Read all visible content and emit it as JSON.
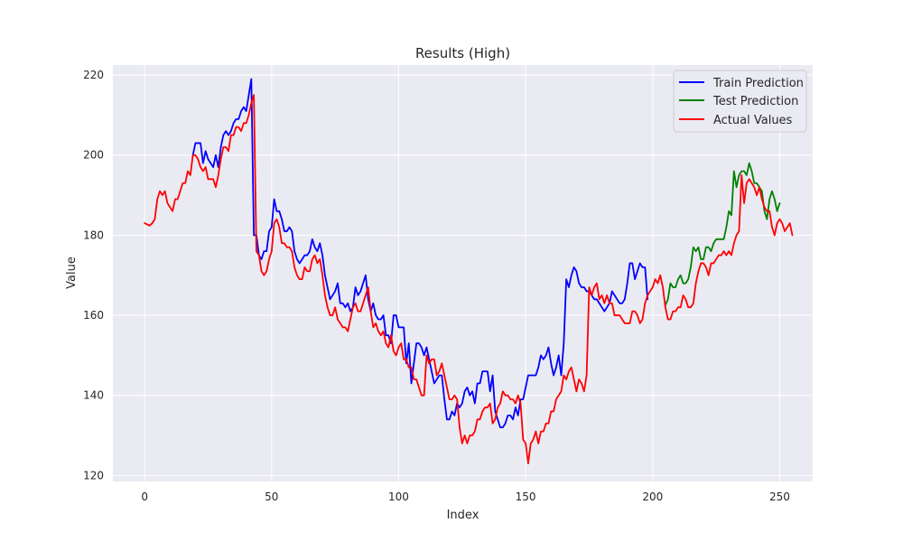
{
  "chart_data": {
    "type": "line",
    "title": "Results (High)",
    "xlabel": "Index",
    "ylabel": "Value",
    "xlim": [
      -12.5,
      263
    ],
    "ylim": [
      118.5,
      222.5
    ],
    "xticks": [
      0,
      50,
      100,
      150,
      200,
      250
    ],
    "yticks": [
      120,
      140,
      160,
      180,
      200,
      220
    ],
    "grid": true,
    "legend_position": "top-right",
    "colors": {
      "plot_background": "#eaeaf2",
      "grid": "#ffffff",
      "text": "#262626"
    },
    "series": [
      {
        "name": "Train Prediction",
        "color": "#0000ff",
        "x_start": 19,
        "values": [
          200,
          203,
          203,
          203,
          198,
          201,
          199,
          198,
          197,
          200,
          197,
          202,
          205,
          206,
          205,
          206,
          208,
          209,
          209,
          211,
          212,
          211,
          215,
          219,
          180,
          180,
          175,
          174,
          176,
          176,
          181,
          182,
          189,
          186,
          186,
          184,
          181,
          181,
          182,
          181,
          176,
          174,
          173,
          174,
          175,
          175,
          176,
          179,
          177,
          176,
          178,
          175,
          170,
          167,
          164,
          165,
          166,
          168,
          163,
          163,
          162,
          163,
          161,
          162,
          167,
          165,
          166,
          168,
          170,
          164,
          161,
          163,
          160,
          159,
          159,
          160,
          155,
          155,
          153,
          160,
          160,
          157,
          157,
          157,
          148,
          153,
          143,
          148,
          153,
          153,
          152,
          150,
          152,
          149,
          146,
          143,
          144,
          145,
          145,
          139,
          134,
          134,
          136,
          135,
          138,
          137,
          138,
          141,
          142,
          140,
          141,
          138,
          143,
          143,
          146,
          146,
          146,
          141,
          145,
          136,
          134,
          132,
          132,
          133,
          135,
          135,
          134,
          137,
          135,
          139,
          139,
          142,
          145,
          145,
          145,
          145,
          147,
          150,
          149,
          150,
          152,
          148,
          145,
          147,
          150,
          145,
          153,
          169,
          167,
          170,
          172,
          171,
          168,
          167,
          167,
          166,
          166,
          165,
          164,
          164,
          163,
          162,
          161,
          162,
          163,
          166,
          165,
          164,
          163,
          163,
          164,
          168,
          173,
          173,
          169,
          171,
          173,
          172,
          172,
          164
        ]
      },
      {
        "name": "Test Prediction",
        "color": "#008000",
        "x_start": 205,
        "values": [
          162.5,
          164,
          168,
          167,
          167,
          169,
          170,
          168,
          168,
          169,
          172,
          177,
          176,
          177,
          174,
          174,
          177,
          177,
          176,
          178,
          179,
          179,
          179,
          179,
          182,
          186,
          185,
          196,
          192,
          195,
          196,
          196,
          195,
          198,
          196,
          193,
          193,
          192,
          191,
          186,
          184,
          189,
          191,
          189,
          186,
          188
        ]
      },
      {
        "name": "Actual Values",
        "color": "#ff0000",
        "x_start": 0,
        "values": [
          183,
          182.7,
          182.4,
          183,
          184,
          189,
          191,
          190,
          191,
          188,
          187,
          186,
          189,
          189,
          191,
          193,
          193,
          196,
          195,
          200,
          200,
          199,
          197,
          196,
          197,
          194,
          194,
          194,
          192,
          195,
          199,
          202,
          202,
          201,
          205,
          205,
          207,
          207,
          206,
          208,
          208,
          210,
          213,
          215,
          176,
          175,
          171,
          170,
          171,
          174,
          176,
          183,
          184,
          182,
          178,
          178,
          177,
          177,
          176,
          172,
          170,
          169,
          169,
          172,
          171,
          171,
          174,
          175,
          173,
          174,
          170,
          165,
          162,
          160,
          160,
          162,
          159,
          158,
          157,
          157,
          156,
          159,
          162,
          163,
          161,
          161,
          163,
          165,
          167,
          161,
          157,
          158,
          156,
          155,
          156,
          153,
          152,
          155,
          151,
          150,
          152,
          153,
          149,
          149,
          147,
          147,
          144,
          144,
          142,
          140,
          140,
          150,
          148,
          149,
          149,
          145,
          146,
          148,
          145,
          142,
          139,
          139,
          140,
          139,
          132,
          128,
          130,
          128,
          130,
          130,
          131,
          134,
          134,
          136,
          137,
          137,
          138,
          133,
          134,
          137,
          138,
          141,
          140,
          140,
          139,
          139,
          138,
          140,
          138,
          129,
          128,
          123,
          128,
          129,
          131,
          128,
          131,
          131,
          133,
          133,
          136,
          136,
          139,
          140,
          141,
          145,
          144,
          146,
          147,
          144,
          141,
          144,
          143,
          141,
          145,
          167,
          165,
          167,
          168,
          164,
          165,
          163,
          165,
          163,
          163,
          160,
          160,
          160,
          159,
          158,
          158,
          158,
          161,
          161,
          160,
          158,
          159,
          163,
          165,
          166,
          167,
          169,
          168,
          170,
          167,
          162,
          159,
          159,
          161,
          161,
          162,
          162,
          165,
          164,
          162,
          162,
          163,
          168,
          171,
          173,
          173,
          172,
          170,
          173,
          173,
          174,
          175,
          175,
          176,
          175,
          176,
          175,
          178,
          180,
          181,
          195,
          188,
          193,
          194,
          193,
          192,
          190,
          192,
          189,
          187,
          186,
          186,
          182,
          180,
          183,
          184,
          183,
          181,
          182,
          183,
          180
        ]
      }
    ]
  }
}
